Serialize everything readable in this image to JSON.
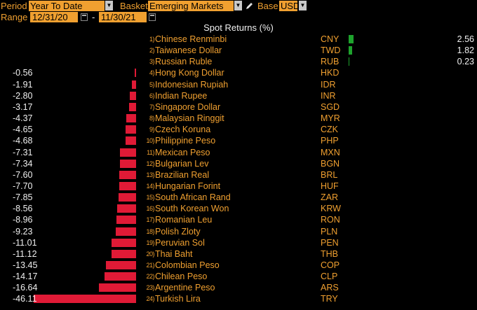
{
  "toolbar": {
    "period_label": "Period",
    "period_value": "Year To Date",
    "basket_label": "Basket",
    "basket_value": "Emerging Markets",
    "base_label": "Base",
    "base_value": "USD",
    "range_label": "Range",
    "range_start": "12/31/20",
    "range_sep": "-",
    "range_end": "11/30/21",
    "dropdown_icon": "triangle-down-icon",
    "calendar_icon": "calendar-icon",
    "edit_icon": "pencil-icon"
  },
  "chart_data": {
    "type": "bar",
    "orientation": "horizontal",
    "title": "Spot Returns (%)",
    "colors": {
      "positive": "#1ea32d",
      "negative": "#e01a36"
    },
    "rows": [
      {
        "rank": "1)",
        "name": "Chinese Renminbi",
        "code": "CNY",
        "value": 2.56,
        "label": "2.56"
      },
      {
        "rank": "2)",
        "name": "Taiwanese Dollar",
        "code": "TWD",
        "value": 1.82,
        "label": "1.82"
      },
      {
        "rank": "3)",
        "name": "Russian Ruble",
        "code": "RUB",
        "value": 0.23,
        "label": "0.23"
      },
      {
        "rank": "4)",
        "name": "Hong Kong Dollar",
        "code": "HKD",
        "value": -0.56,
        "label": "-0.56"
      },
      {
        "rank": "5)",
        "name": "Indonesian Rupiah",
        "code": "IDR",
        "value": -1.91,
        "label": "-1.91"
      },
      {
        "rank": "6)",
        "name": "Indian Rupee",
        "code": "INR",
        "value": -2.8,
        "label": "-2.80"
      },
      {
        "rank": "7)",
        "name": "Singapore Dollar",
        "code": "SGD",
        "value": -3.17,
        "label": "-3.17"
      },
      {
        "rank": "8)",
        "name": "Malaysian Ringgit",
        "code": "MYR",
        "value": -4.37,
        "label": "-4.37"
      },
      {
        "rank": "9)",
        "name": "Czech Koruna",
        "code": "CZK",
        "value": -4.65,
        "label": "-4.65"
      },
      {
        "rank": "10)",
        "name": "Philippine Peso",
        "code": "PHP",
        "value": -4.68,
        "label": "-4.68"
      },
      {
        "rank": "11)",
        "name": "Mexican Peso",
        "code": "MXN",
        "value": -7.31,
        "label": "-7.31"
      },
      {
        "rank": "12)",
        "name": "Bulgarian Lev",
        "code": "BGN",
        "value": -7.34,
        "label": "-7.34"
      },
      {
        "rank": "13)",
        "name": "Brazilian Real",
        "code": "BRL",
        "value": -7.6,
        "label": "-7.60"
      },
      {
        "rank": "14)",
        "name": "Hungarian Forint",
        "code": "HUF",
        "value": -7.7,
        "label": "-7.70"
      },
      {
        "rank": "15)",
        "name": "South African Rand",
        "code": "ZAR",
        "value": -7.85,
        "label": "-7.85"
      },
      {
        "rank": "16)",
        "name": "South Korean Won",
        "code": "KRW",
        "value": -8.56,
        "label": "-8.56"
      },
      {
        "rank": "17)",
        "name": "Romanian Leu",
        "code": "RON",
        "value": -8.96,
        "label": "-8.96"
      },
      {
        "rank": "18)",
        "name": "Polish Zloty",
        "code": "PLN",
        "value": -9.23,
        "label": "-9.23"
      },
      {
        "rank": "19)",
        "name": "Peruvian Sol",
        "code": "PEN",
        "value": -11.01,
        "label": "-11.01"
      },
      {
        "rank": "20)",
        "name": "Thai Baht",
        "code": "THB",
        "value": -11.12,
        "label": "-11.12"
      },
      {
        "rank": "21)",
        "name": "Colombian Peso",
        "code": "COP",
        "value": -13.45,
        "label": "-13.45"
      },
      {
        "rank": "22)",
        "name": "Chilean Peso",
        "code": "CLP",
        "value": -14.17,
        "label": "-14.17"
      },
      {
        "rank": "23)",
        "name": "Argentine Peso",
        "code": "ARS",
        "value": -16.64,
        "label": "-16.64"
      },
      {
        "rank": "24)",
        "name": "Turkish Lira",
        "code": "TRY",
        "value": -46.11,
        "label": "-46.11"
      }
    ]
  }
}
